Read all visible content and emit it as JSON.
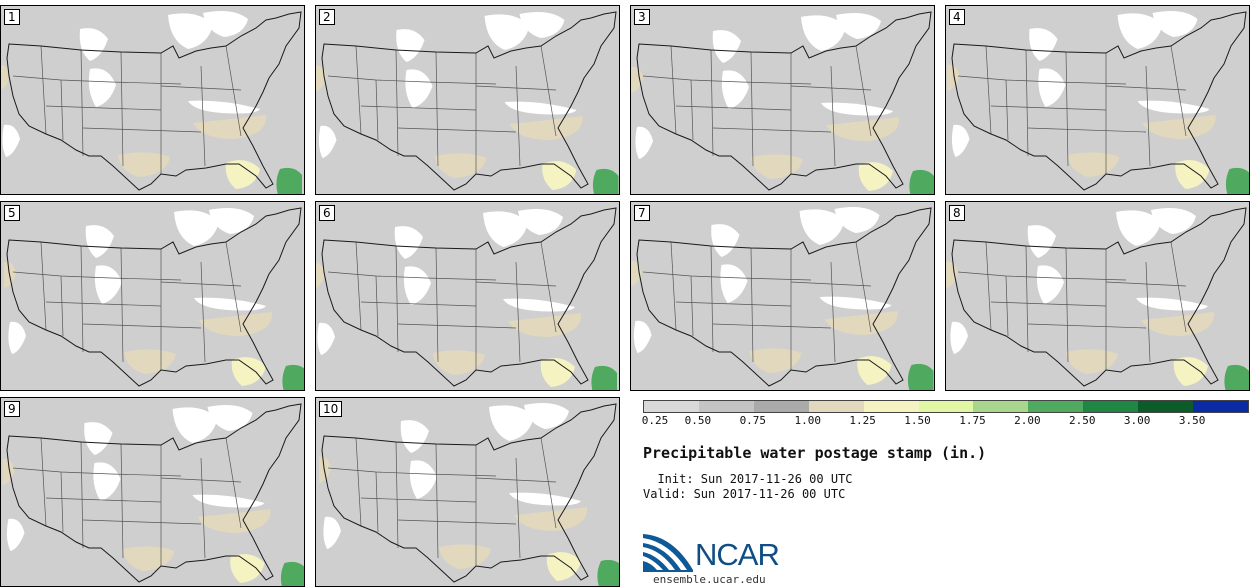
{
  "panels": [
    {
      "label": "1"
    },
    {
      "label": "2"
    },
    {
      "label": "3"
    },
    {
      "label": "4"
    },
    {
      "label": "5"
    },
    {
      "label": "6"
    },
    {
      "label": "7"
    },
    {
      "label": "8"
    },
    {
      "label": "9"
    },
    {
      "label": "10"
    }
  ],
  "colorbar": {
    "colors": [
      "#d9d9d9",
      "#c4c4c4",
      "#aaaaaa",
      "#e1d8bd",
      "#f6f3c3",
      "#e2f7a3",
      "#a8d68c",
      "#4fa95f",
      "#1e8744",
      "#0c5c2a",
      "#0b2aa6"
    ],
    "labels": [
      "0.25",
      "0.50",
      "0.75",
      "1.00",
      "1.25",
      "1.50",
      "1.75",
      "2.00",
      "2.50",
      "3.00",
      "3.50"
    ]
  },
  "title": "Precipitable water postage stamp (in.)",
  "init": "  Init: Sun 2017-11-26 00 UTC",
  "valid": "Valid: Sun 2017-11-26 00 UTC",
  "logo": {
    "word": "NCAR",
    "url": "ensemble.ucar.edu"
  },
  "map_colors": {
    "background": "#cfcfcf",
    "dry": "#ffffff",
    "moist": "#e1d8bd",
    "wet": "#f6f3c3",
    "very_wet": "#4fa95f",
    "border": "#1a1a1a",
    "state_line": "#555555"
  }
}
